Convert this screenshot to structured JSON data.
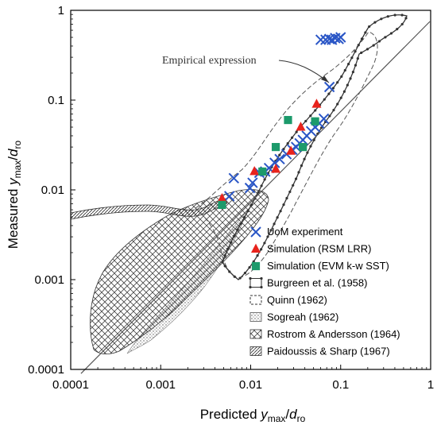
{
  "chart_data": {
    "type": "scatter",
    "xscale": "log",
    "yscale": "log",
    "xlim": [
      0.0001,
      1
    ],
    "ylim": [
      0.0001,
      1
    ],
    "xticks": [
      "0.0001",
      "0.001",
      "0.01",
      "0.1",
      "1"
    ],
    "yticks": [
      "0.0001",
      "0.001",
      "0.01",
      "0.1",
      "1"
    ],
    "xlabel": {
      "pre": "Predicted ",
      "var": "y",
      "sub1": "max",
      "mid": "/",
      "var2": "d",
      "sub2": "ro"
    },
    "ylabel": {
      "pre": "Measured ",
      "var": "y",
      "sub1": "max",
      "mid": "/",
      "var2": "d",
      "sub2": "ro"
    },
    "annotation": "Empirical expression",
    "legend_position": "bottom-right",
    "series": [
      {
        "name": "UoM experiment",
        "marker": "x",
        "color": "#2a56c6",
        "points": [
          [
            0.0058,
            0.0085
          ],
          [
            0.0065,
            0.0135
          ],
          [
            0.0098,
            0.0105
          ],
          [
            0.0105,
            0.012
          ],
          [
            0.0125,
            0.0155
          ],
          [
            0.0145,
            0.016
          ],
          [
            0.016,
            0.0175
          ],
          [
            0.0185,
            0.02
          ],
          [
            0.021,
            0.022
          ],
          [
            0.025,
            0.025
          ],
          [
            0.029,
            0.028
          ],
          [
            0.032,
            0.03
          ],
          [
            0.035,
            0.033
          ],
          [
            0.038,
            0.036
          ],
          [
            0.042,
            0.04
          ],
          [
            0.047,
            0.045
          ],
          [
            0.052,
            0.05
          ],
          [
            0.058,
            0.055
          ],
          [
            0.065,
            0.062
          ],
          [
            0.075,
            0.14
          ],
          [
            0.06,
            0.47
          ],
          [
            0.068,
            0.47
          ],
          [
            0.075,
            0.48
          ],
          [
            0.08,
            0.47
          ],
          [
            0.087,
            0.49
          ],
          [
            0.095,
            0.48
          ],
          [
            0.1,
            0.5
          ]
        ]
      },
      {
        "name": "Simulation (RSM LRR)",
        "marker": "triangle",
        "color": "#e8231c",
        "points": [
          [
            0.0048,
            0.008
          ],
          [
            0.011,
            0.016
          ],
          [
            0.019,
            0.017
          ],
          [
            0.028,
            0.027
          ],
          [
            0.036,
            0.05
          ],
          [
            0.054,
            0.09
          ]
        ]
      },
      {
        "name": "Simulation (EVM k-w SST)",
        "marker": "square",
        "color": "#1c9a6b",
        "points": [
          [
            0.0048,
            0.0068
          ],
          [
            0.0135,
            0.016
          ],
          [
            0.019,
            0.03
          ],
          [
            0.026,
            0.06
          ],
          [
            0.038,
            0.03
          ],
          [
            0.052,
            0.058
          ]
        ]
      },
      {
        "name": "Burgreen et al. (1958)",
        "marker": "dotted-outline"
      },
      {
        "name": "Quinn (1962)",
        "marker": "dashed-outline"
      },
      {
        "name": "Sogreah (1962)",
        "marker": "stippled-region"
      },
      {
        "name": "Rostrom & Andersson (1964)",
        "marker": "crosshatch-region"
      },
      {
        "name": "Paidoussis & Sharp (1967)",
        "marker": "hatched-edge"
      }
    ]
  }
}
